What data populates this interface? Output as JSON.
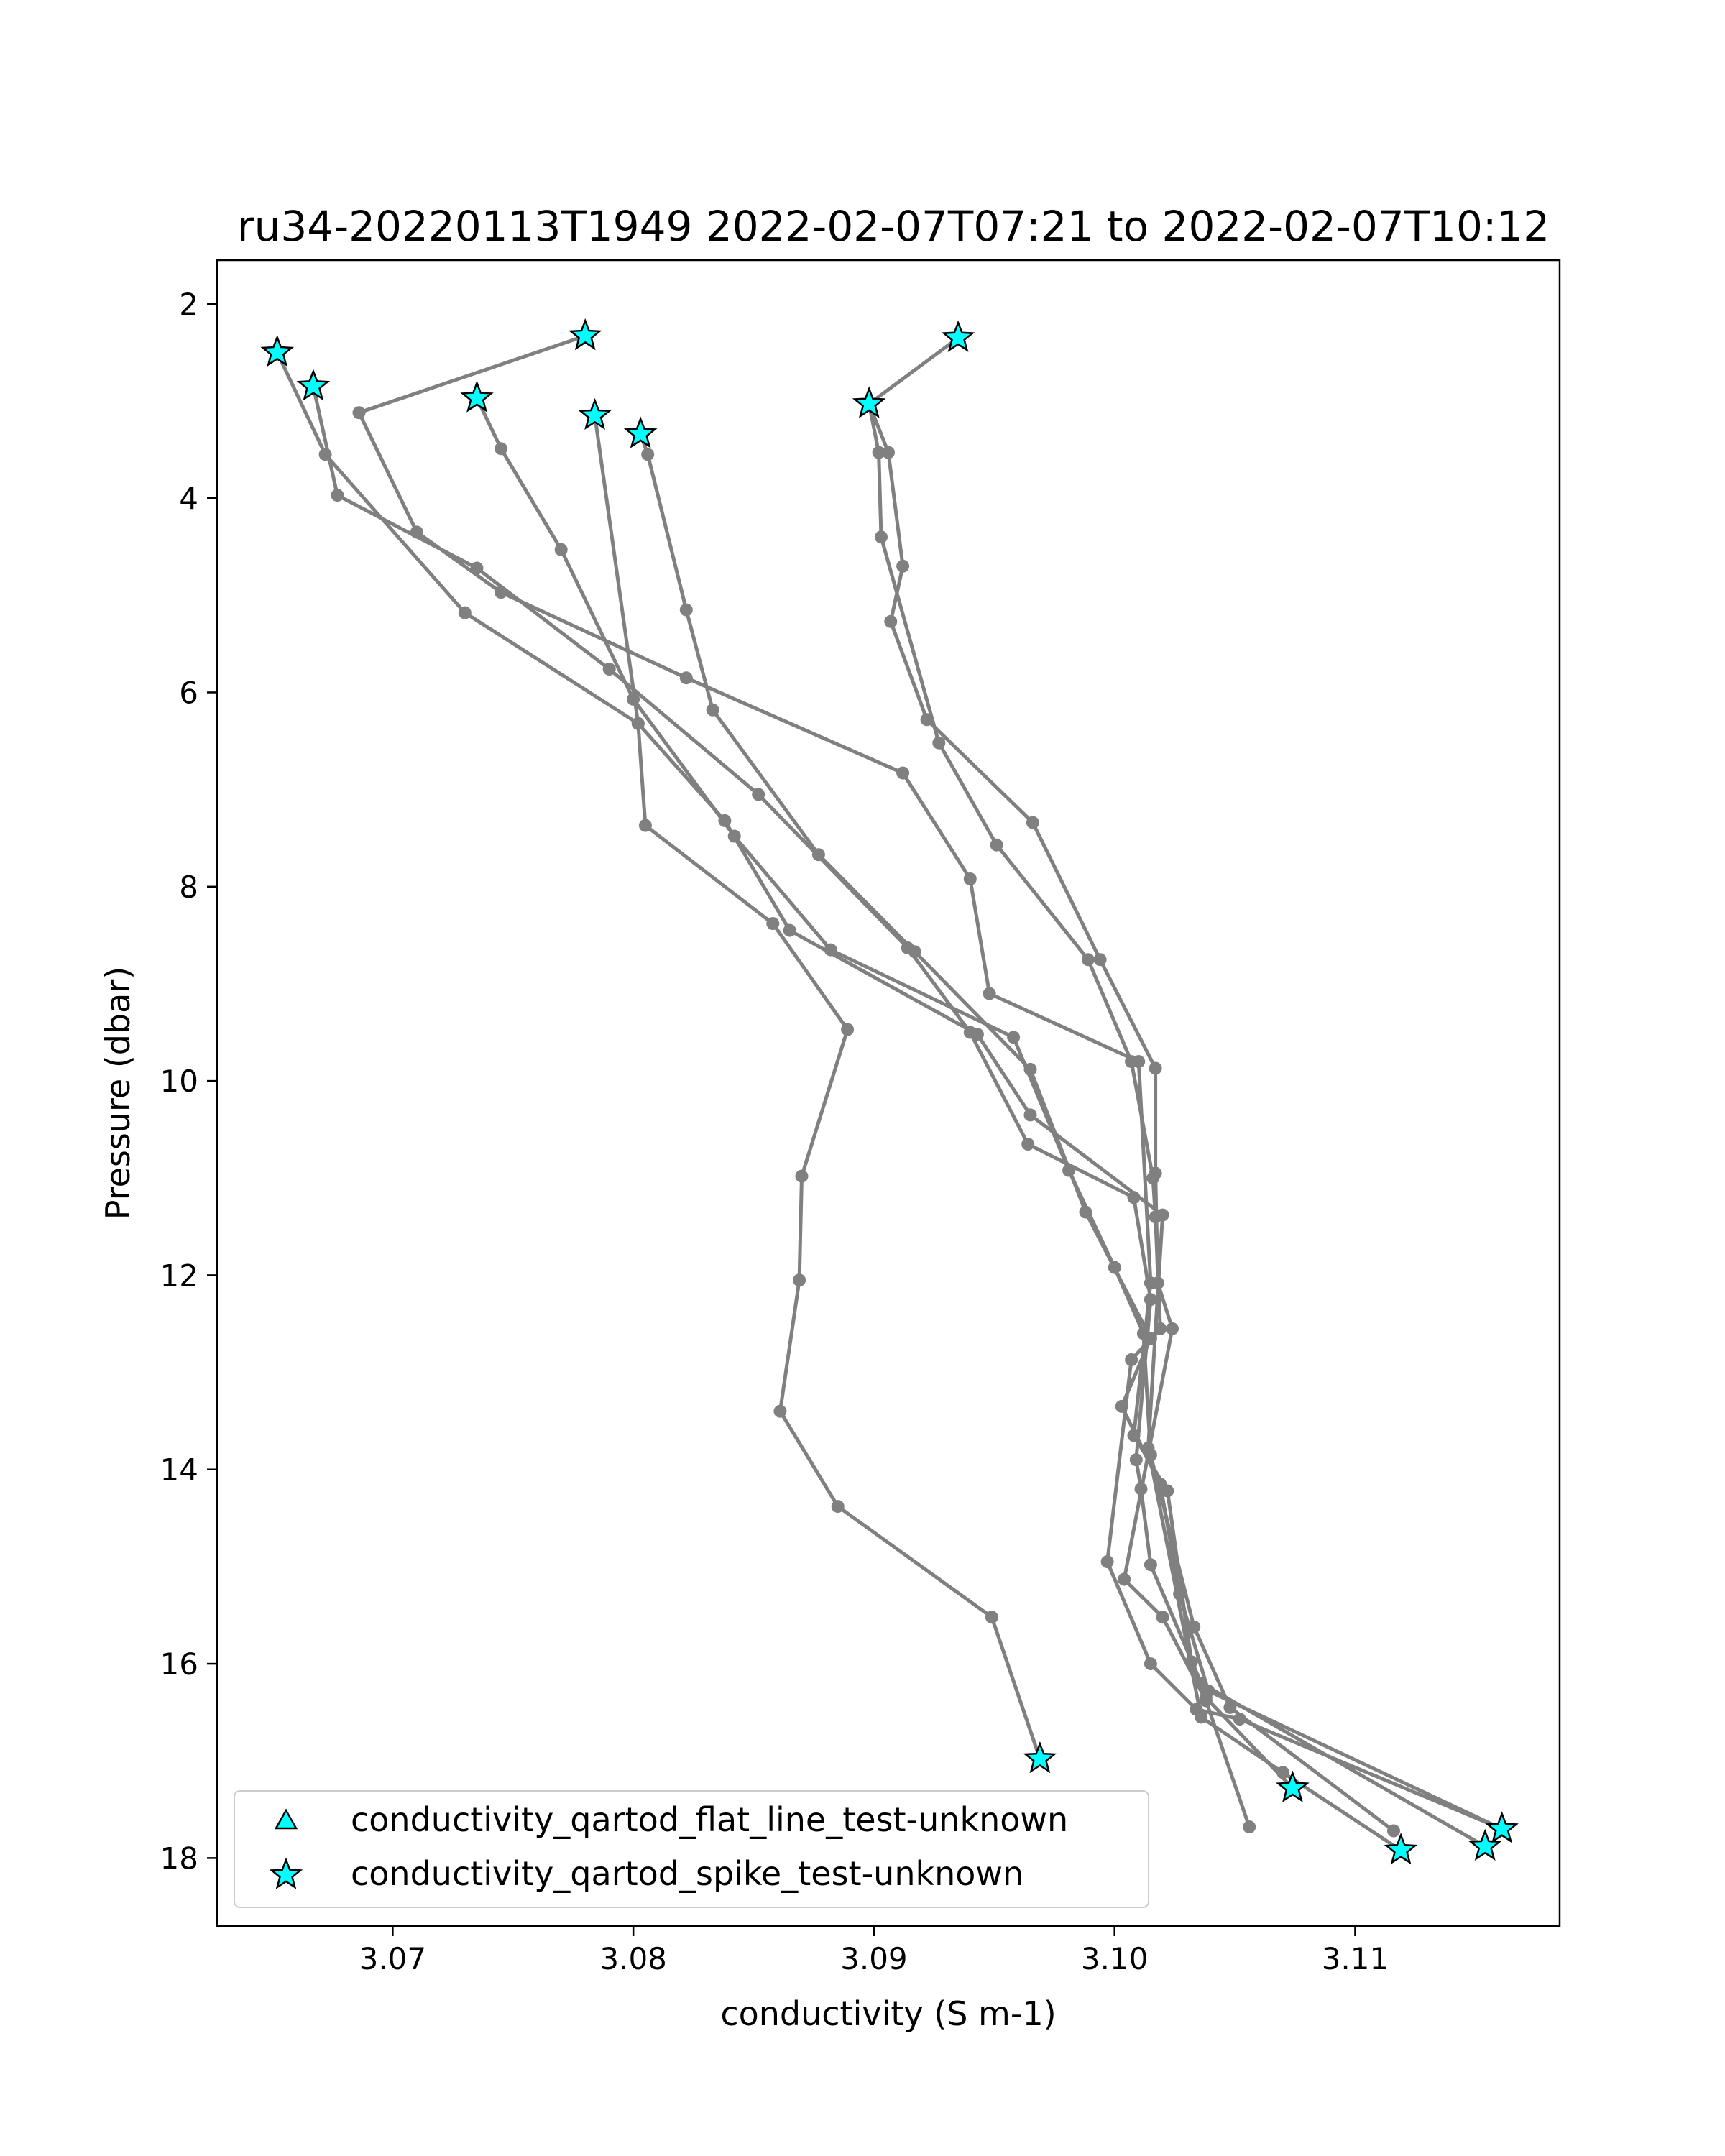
{
  "chart_data": {
    "type": "line",
    "title": "ru34-20220113T1949 2022-02-07T07:21 to 2022-02-07T10:12",
    "xlabel": "conductivity (S m-1)",
    "ylabel": "Pressure (dbar)",
    "xlim": [
      3.0627,
      3.1185
    ],
    "ylim": [
      18.7,
      1.55
    ],
    "y_inverted": true,
    "grid": false,
    "xticks": [
      3.07,
      3.08,
      3.09,
      3.1,
      3.11
    ],
    "xtick_labels": [
      "3.07",
      "3.08",
      "3.09",
      "3.10",
      "3.11"
    ],
    "yticks": [
      2,
      4,
      6,
      8,
      10,
      12,
      14,
      16,
      18
    ],
    "ytick_labels": [
      "2",
      "4",
      "6",
      "8",
      "10",
      "12",
      "14",
      "16",
      "18"
    ],
    "line_color": "#808080",
    "profiles": [
      {
        "x": [
          3.078,
          3.0686,
          3.071,
          3.0745,
          3.0822,
          3.0912,
          3.094,
          3.0948,
          3.101,
          3.1015,
          3.1008,
          3.1022,
          3.1032,
          3.1038,
          3.1074
        ],
        "y": [
          2.33,
          3.12,
          4.35,
          4.97,
          5.85,
          6.83,
          7.92,
          9.1,
          9.8,
          12.08,
          13.65,
          14.22,
          15.98,
          16.35,
          17.28
        ]
      },
      {
        "x": [
          3.0652,
          3.0672,
          3.073,
          3.0802,
          3.0838,
          3.0865,
          3.0943,
          3.0965,
          3.102,
          3.1014,
          3.1036,
          3.107,
          3.1119
        ],
        "y": [
          2.5,
          3.55,
          5.18,
          6.32,
          7.32,
          8.45,
          9.52,
          10.35,
          11.38,
          13.78,
          16.55,
          17.12,
          17.92
        ]
      },
      {
        "x": [
          3.0667,
          3.0677,
          3.0735,
          3.079,
          3.0852,
          3.0914,
          3.094,
          3.0964,
          3.1008,
          3.1015,
          3.1009,
          3.1011,
          3.1015,
          3.1036,
          3.1154
        ],
        "y": [
          2.85,
          3.97,
          4.72,
          5.76,
          7.05,
          8.63,
          9.5,
          10.65,
          11.2,
          12.25,
          13.9,
          14.2,
          14.98,
          16.2,
          17.88
        ]
      },
      {
        "x": [
          3.0735,
          3.0745,
          3.077,
          3.08,
          3.0842,
          3.0882,
          3.0958,
          3.0981,
          3.1,
          3.1012,
          3.1015,
          3.1033,
          3.1048,
          3.1116
        ],
        "y": [
          2.97,
          3.49,
          4.53,
          6.07,
          7.48,
          8.65,
          9.55,
          10.92,
          11.92,
          12.6,
          13.85,
          15.62,
          16.45,
          17.72
        ]
      },
      {
        "x": [
          3.0784,
          3.0802,
          3.0805,
          3.0858,
          3.0889,
          3.087,
          3.0869,
          3.0861,
          3.0885,
          3.0949,
          3.0969
        ],
        "y": [
          3.15,
          6.32,
          7.37,
          8.38,
          9.47,
          10.98,
          12.05,
          13.4,
          14.38,
          15.52,
          16.98
        ]
      },
      {
        "x": [
          3.0803,
          3.0806,
          3.0822,
          3.0833,
          3.0877,
          3.0917,
          3.0965,
          3.0988,
          3.1015,
          3.1003,
          3.1019,
          3.1027,
          3.1031,
          3.1039,
          3.1161
        ],
        "y": [
          3.34,
          3.55,
          5.15,
          6.18,
          7.67,
          8.67,
          9.88,
          11.35,
          12.65,
          13.35,
          14.15,
          15.28,
          15.62,
          16.28,
          17.7
        ]
      },
      {
        "x": [
          3.0935,
          3.0898,
          3.0902,
          3.0903,
          3.0927,
          3.0951,
          3.0989,
          3.1007,
          3.1016,
          3.1017,
          3.1019,
          3.1007,
          3.0997,
          3.1015,
          3.1034,
          3.1052,
          3.1161
        ],
        "y": [
          2.35,
          3.03,
          3.53,
          4.4,
          6.52,
          7.57,
          8.75,
          9.8,
          11.0,
          11.4,
          12.55,
          12.87,
          14.95,
          16.0,
          16.47,
          16.57,
          17.7
        ]
      },
      {
        "x": [
          3.0898,
          3.0906,
          3.0912,
          3.0907,
          3.0922,
          3.0966,
          3.0994,
          3.1017,
          3.1017,
          3.1018,
          3.1024,
          3.1004,
          3.102,
          3.1038,
          3.1056
        ],
        "y": [
          3.03,
          3.53,
          4.7,
          5.27,
          6.28,
          7.34,
          8.75,
          9.87,
          10.95,
          12.08,
          12.55,
          15.13,
          15.52,
          16.38,
          17.68
        ]
      }
    ],
    "spike_flags": {
      "x": [
        3.0652,
        3.0667,
        3.078,
        3.0735,
        3.0784,
        3.0803,
        3.0898,
        3.0935,
        3.0969,
        3.1074,
        3.1119,
        3.1154,
        3.1161
      ],
      "y": [
        2.5,
        2.85,
        2.33,
        2.97,
        3.15,
        3.34,
        3.03,
        2.35,
        16.98,
        17.28,
        17.92,
        17.88,
        17.7
      ]
    },
    "flat_line_flags": {
      "x": [],
      "y": []
    },
    "marker_color": "#00ffff",
    "legend": {
      "placement": "lower-left",
      "entries": [
        {
          "label": "conductivity_qartod_flat_line_test-unknown",
          "marker": "triangle"
        },
        {
          "label": "conductivity_qartod_spike_test-unknown",
          "marker": "star"
        }
      ]
    }
  }
}
